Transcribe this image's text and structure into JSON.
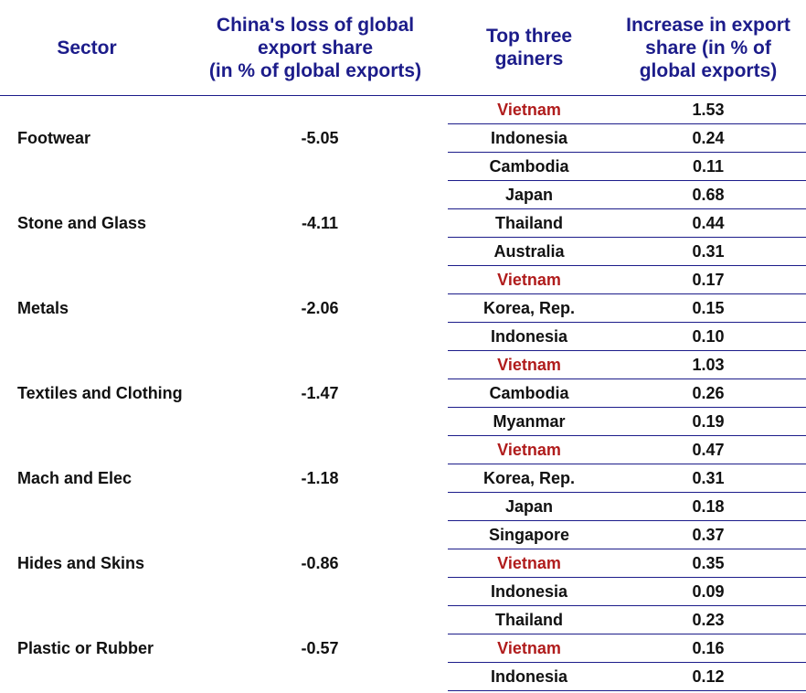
{
  "headers": {
    "sector": "Sector",
    "loss": [
      "China's loss of global",
      "export share",
      "(in % of global exports)"
    ],
    "gainers": [
      "Top three",
      "gainers"
    ],
    "increase": [
      "Increase in export",
      "share  (in % of",
      "global exports)"
    ]
  },
  "colors": {
    "header_text": "#1c1c8a",
    "rule": "#1c1c8a",
    "highlight": "#b01c1c",
    "body_text": "#111111"
  },
  "rows": [
    {
      "sector": "Footwear",
      "loss": "-5.05",
      "gainers": [
        {
          "name": "Vietnam",
          "value": "1.53",
          "highlight": true
        },
        {
          "name": "Indonesia",
          "value": "0.24",
          "highlight": false
        },
        {
          "name": "Cambodia",
          "value": "0.11",
          "highlight": false
        }
      ]
    },
    {
      "sector": "Stone and Glass",
      "loss": "-4.11",
      "gainers": [
        {
          "name": "Japan",
          "value": "0.68",
          "highlight": false
        },
        {
          "name": "Thailand",
          "value": "0.44",
          "highlight": false
        },
        {
          "name": "Australia",
          "value": "0.31",
          "highlight": false
        }
      ]
    },
    {
      "sector": "Metals",
      "loss": "-2.06",
      "gainers": [
        {
          "name": "Vietnam",
          "value": "0.17",
          "highlight": true
        },
        {
          "name": "Korea, Rep.",
          "value": "0.15",
          "highlight": false
        },
        {
          "name": "Indonesia",
          "value": "0.10",
          "highlight": false
        }
      ]
    },
    {
      "sector": "Textiles and Clothing",
      "loss": "-1.47",
      "gainers": [
        {
          "name": "Vietnam",
          "value": "1.03",
          "highlight": true
        },
        {
          "name": "Cambodia",
          "value": "0.26",
          "highlight": false
        },
        {
          "name": "Myanmar",
          "value": "0.19",
          "highlight": false
        }
      ]
    },
    {
      "sector": "Mach and Elec",
      "loss": "-1.18",
      "gainers": [
        {
          "name": "Vietnam",
          "value": "0.47",
          "highlight": true
        },
        {
          "name": "Korea, Rep.",
          "value": "0.31",
          "highlight": false
        },
        {
          "name": "Japan",
          "value": "0.18",
          "highlight": false
        }
      ]
    },
    {
      "sector": "Hides and Skins",
      "loss": "-0.86",
      "gainers": [
        {
          "name": "Singapore",
          "value": "0.37",
          "highlight": false
        },
        {
          "name": "Vietnam",
          "value": "0.35",
          "highlight": true
        },
        {
          "name": "Indonesia",
          "value": "0.09",
          "highlight": false
        }
      ]
    },
    {
      "sector": "Plastic or Rubber",
      "loss": "-0.57",
      "gainers": [
        {
          "name": "Thailand",
          "value": "0.23",
          "highlight": false
        },
        {
          "name": "Vietnam",
          "value": "0.16",
          "highlight": true
        },
        {
          "name": "Indonesia",
          "value": "0.12",
          "highlight": false
        }
      ]
    }
  ]
}
